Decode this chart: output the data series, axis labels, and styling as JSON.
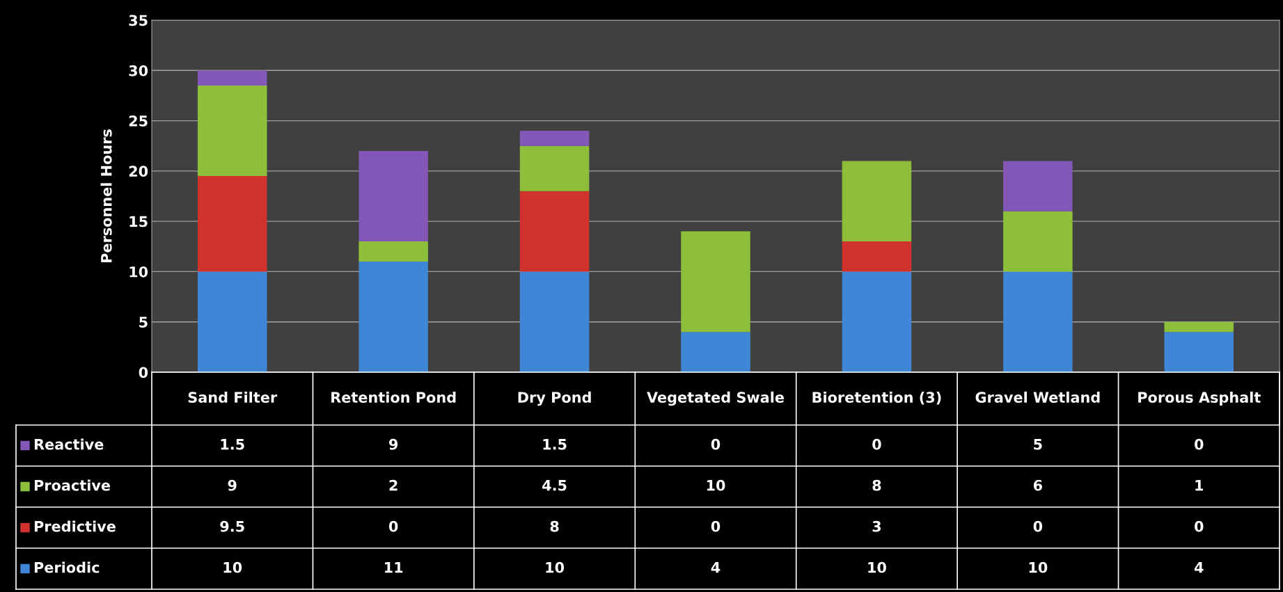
{
  "chart_data": {
    "type": "bar",
    "stacked": true,
    "ylabel": "Personnel Hours",
    "categories": [
      "Sand Filter",
      "Retention Pond",
      "Dry Pond",
      "Vegetated Swale",
      "Bioretention (3)",
      "Gravel Wetland",
      "Porous Asphalt"
    ],
    "series": [
      {
        "name": "Periodic",
        "color": "#3f86d6",
        "values": [
          10,
          11,
          10,
          4,
          10,
          10,
          4
        ]
      },
      {
        "name": "Predictive",
        "color": "#d2322d",
        "values": [
          9.5,
          0,
          8,
          0,
          3,
          0,
          0
        ]
      },
      {
        "name": "Proactive",
        "color": "#8dbf3a",
        "values": [
          9,
          2,
          4.5,
          10,
          8,
          6,
          1
        ]
      },
      {
        "name": "Reactive",
        "color": "#8257b8",
        "values": [
          1.5,
          9,
          1.5,
          0,
          0,
          5,
          0
        ]
      }
    ],
    "ylim": [
      0,
      35
    ],
    "yticks": [
      0,
      5,
      10,
      15,
      20,
      25,
      30,
      35
    ],
    "grid": "y",
    "data_labels": true,
    "legend": "bottom"
  }
}
